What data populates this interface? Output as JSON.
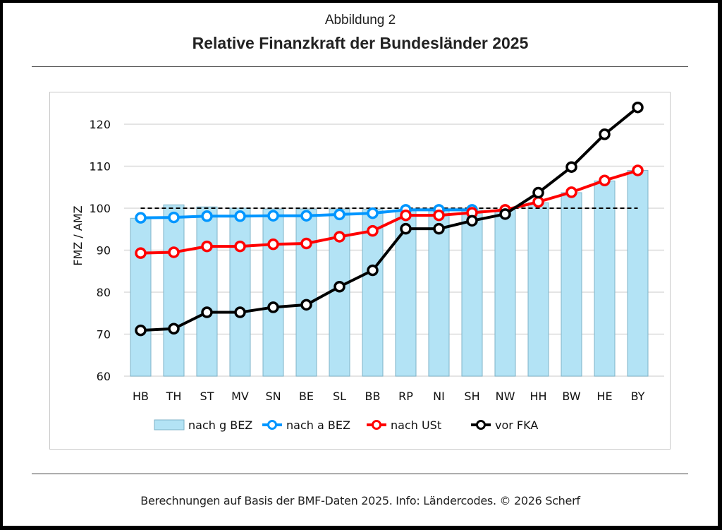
{
  "header": {
    "figure_label": "Abbildung 2",
    "title": "Relative Finanzkraft der Bundesländer 2025"
  },
  "footer": {
    "text": "Berechnungen auf Basis der BMF-Daten 2025. Info: Ländercodes. © 2026 Scherf"
  },
  "chart_data": {
    "type": "bar",
    "title": "Relative Finanzkraft der Bundesländer 2025",
    "xlabel": "",
    "ylabel": "FMZ / AMZ",
    "ylim": [
      60,
      125
    ],
    "yticks": [
      60,
      70,
      80,
      90,
      100,
      110,
      120
    ],
    "grid": true,
    "reference_line": {
      "value": 100,
      "style": "dashed",
      "color": "#000000"
    },
    "legend_position": "bottom",
    "categories": [
      "HB",
      "TH",
      "ST",
      "MV",
      "SN",
      "BE",
      "SL",
      "BB",
      "RP",
      "NI",
      "SH",
      "NW",
      "HH",
      "BW",
      "HE",
      "BY"
    ],
    "series": [
      {
        "name": "nach g BEZ",
        "kind": "bar",
        "color": "#b3e3f5",
        "edge_color": "#7fb3c8",
        "values": [
          97.6,
          100.8,
          100.3,
          100.0,
          99.8,
          99.8,
          99.8,
          99.7,
          99.6,
          99.6,
          99.6,
          99.6,
          101.3,
          103.7,
          106.5,
          109.0
        ]
      },
      {
        "name": "nach a BEZ",
        "kind": "line",
        "color": "#0096ff",
        "values": [
          97.7,
          97.8,
          98.1,
          98.1,
          98.2,
          98.2,
          98.5,
          98.8,
          99.6,
          99.6,
          99.6,
          null,
          null,
          null,
          null,
          null
        ]
      },
      {
        "name": "nach USt",
        "kind": "line",
        "color": "#ff0000",
        "values": [
          89.3,
          89.5,
          90.9,
          90.9,
          91.4,
          91.6,
          93.2,
          94.6,
          98.3,
          98.3,
          98.9,
          99.6,
          101.5,
          103.8,
          106.6,
          109.0
        ]
      },
      {
        "name": "vor FKA",
        "kind": "line",
        "color": "#000000",
        "values": [
          70.9,
          71.3,
          75.2,
          75.2,
          76.4,
          77.0,
          81.3,
          85.2,
          95.1,
          95.1,
          97.0,
          98.6,
          103.7,
          109.8,
          117.6,
          124.0
        ]
      }
    ]
  }
}
